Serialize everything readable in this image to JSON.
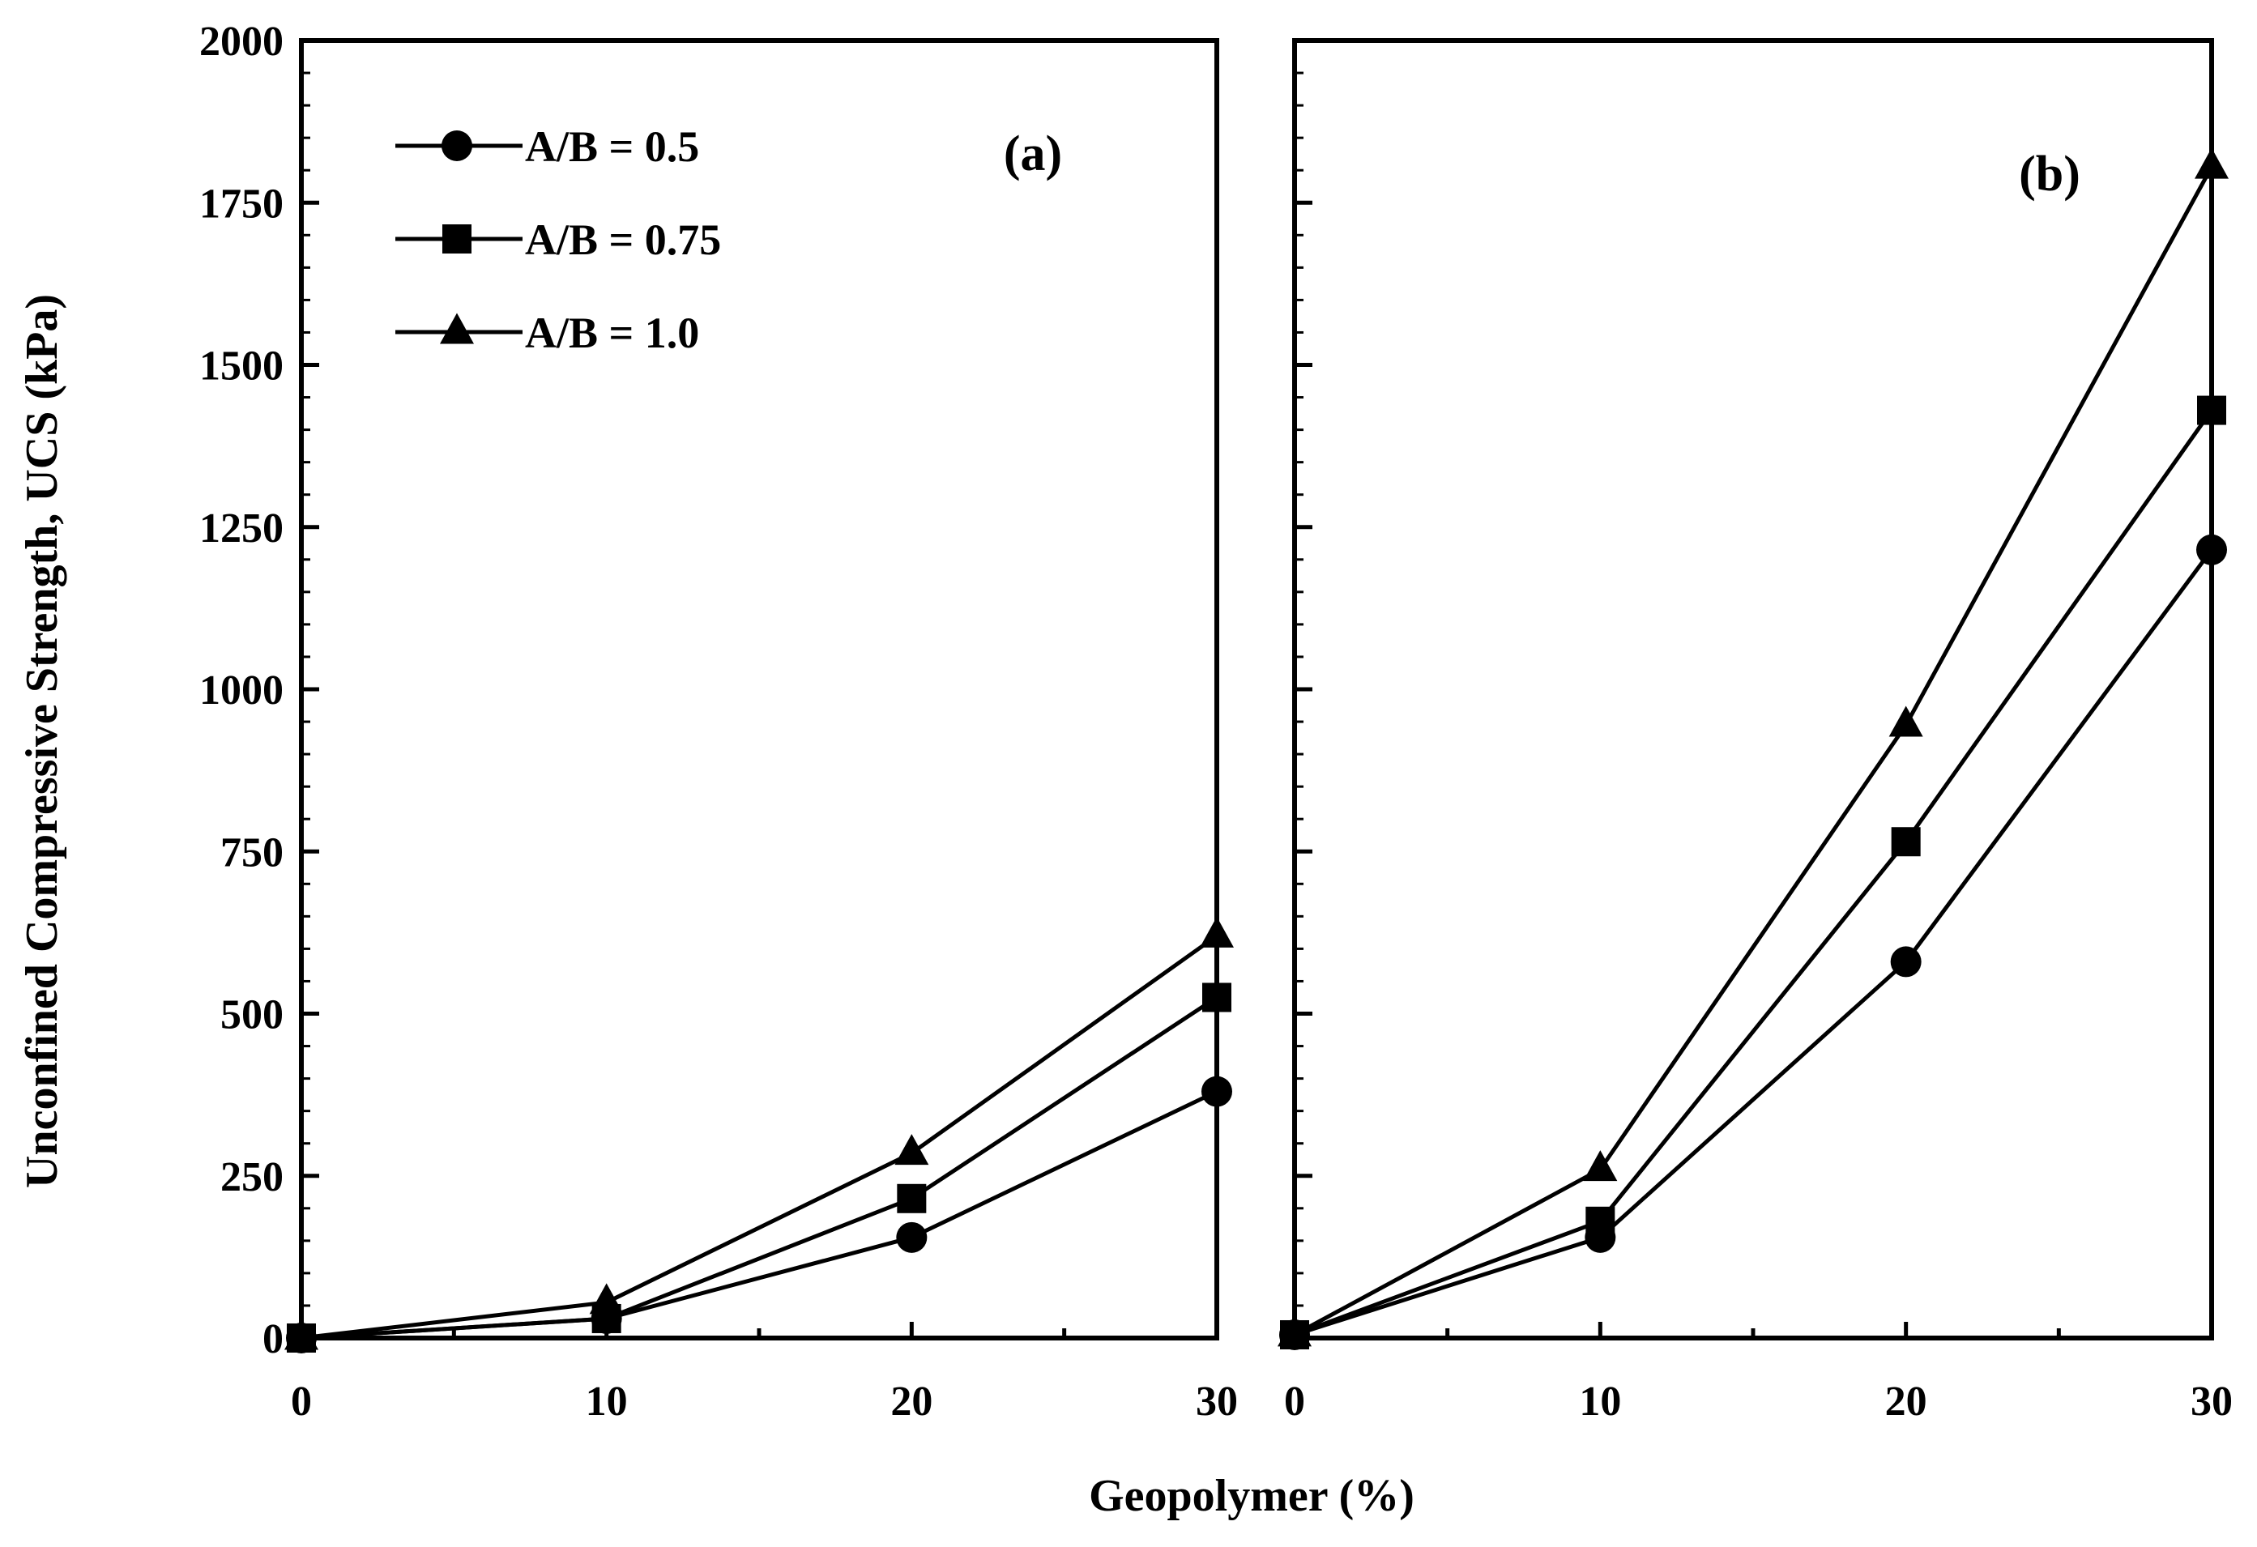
{
  "chart_data": {
    "type": "line",
    "ylabel": "Unconfined Compressive Strength, UCS (kPa)",
    "xlabel": "Geopolymer (%)",
    "x": [
      0,
      10,
      20,
      30
    ],
    "xlim": [
      0,
      30
    ],
    "ylim": [
      0,
      2000
    ],
    "xticks": [
      "0",
      "10",
      "20",
      "30"
    ],
    "yticks": [
      "0",
      "250",
      "500",
      "750",
      "1000",
      "1250",
      "1500",
      "1750",
      "2000"
    ],
    "legend_position": "top-left",
    "panels": [
      {
        "label": "(a)",
        "series": [
          {
            "name": "A/B = 0.5",
            "marker": "circle",
            "values": [
              0,
              30,
              155,
              380
            ]
          },
          {
            "name": "A/B = 0.75",
            "marker": "square",
            "values": [
              0,
              30,
              215,
              525
            ]
          },
          {
            "name": "A/B = 1.0",
            "marker": "triangle",
            "values": [
              0,
              55,
              285,
              620
            ]
          }
        ]
      },
      {
        "label": "(b)",
        "series": [
          {
            "name": "A/B = 0.5",
            "marker": "circle",
            "values": [
              5,
              155,
              580,
              1215
            ]
          },
          {
            "name": "A/B = 0.75",
            "marker": "square",
            "values": [
              5,
              180,
              765,
              1430
            ]
          },
          {
            "name": "A/B = 1.0",
            "marker": "triangle",
            "values": [
              5,
              260,
              945,
              1805
            ]
          }
        ]
      }
    ]
  }
}
